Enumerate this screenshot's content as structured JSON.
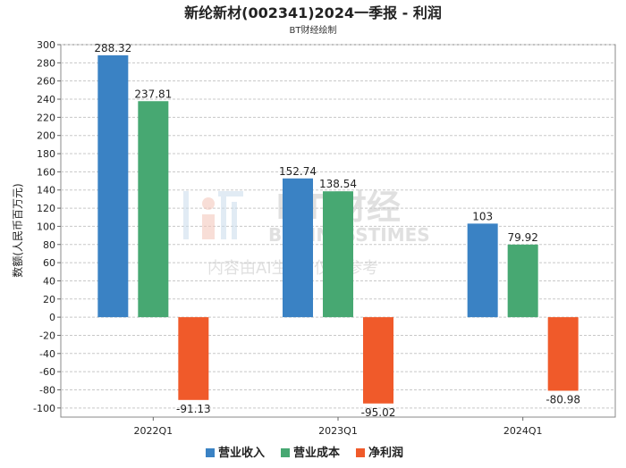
{
  "chart_data": {
    "type": "bar",
    "title": "新纶新材(002341)2024一季报 - 利润",
    "subtitle": "BT财经绘制",
    "ylabel": "数额(人民币百万元)",
    "xlabel": "",
    "categories": [
      "2022Q1",
      "2023Q1",
      "2024Q1"
    ],
    "series": [
      {
        "name": "营业收入",
        "color": "#3a82c4",
        "values": [
          288.32,
          152.74,
          103
        ],
        "labels": [
          "288.32",
          "152.74",
          "103"
        ]
      },
      {
        "name": "营业成本",
        "color": "#47a872",
        "values": [
          237.81,
          138.54,
          79.92
        ],
        "labels": [
          "237.81",
          "138.54",
          "79.92"
        ]
      },
      {
        "name": "净利润",
        "color": "#f05a2a",
        "values": [
          -91.13,
          -95.02,
          -80.98
        ],
        "labels": [
          "-91.13",
          "-95.02",
          "-80.98"
        ]
      }
    ],
    "ylim": [
      -110,
      300
    ],
    "yticks": [
      300,
      280,
      260,
      240,
      220,
      200,
      180,
      160,
      140,
      120,
      100,
      80,
      60,
      40,
      20,
      0,
      -20,
      -40,
      -60,
      -80,
      -100
    ],
    "grid": true,
    "legend_position": "bottom"
  },
  "watermark": {
    "brand_latin": "BT",
    "brand_cn": "财经",
    "brand_sub": "BUSINESSTIMES",
    "notice": "内容由AI生成, 仅供参考"
  }
}
